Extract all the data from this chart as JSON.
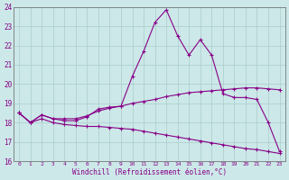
{
  "xlabel": "Windchill (Refroidissement éolien,°C)",
  "xlim": [
    -0.5,
    23.5
  ],
  "ylim": [
    16,
    24
  ],
  "yticks": [
    16,
    17,
    18,
    19,
    20,
    21,
    22,
    23,
    24
  ],
  "xticks": [
    0,
    1,
    2,
    3,
    4,
    5,
    6,
    7,
    8,
    9,
    10,
    11,
    12,
    13,
    14,
    15,
    16,
    17,
    18,
    19,
    20,
    21,
    22,
    23
  ],
  "bg_color": "#cce8e8",
  "grid_color": "#aacccc",
  "line_color": "#880088",
  "line1_x": [
    0,
    1,
    2,
    3,
    4,
    5,
    6,
    7,
    8,
    9,
    10,
    11,
    12,
    13,
    14,
    15,
    16,
    17,
    18,
    19,
    20,
    21,
    22,
    23
  ],
  "line1_y": [
    18.5,
    18.0,
    18.4,
    18.2,
    18.1,
    18.1,
    18.3,
    18.7,
    18.8,
    18.85,
    20.4,
    21.7,
    23.2,
    23.85,
    22.5,
    21.5,
    22.3,
    21.5,
    19.5,
    19.3,
    19.3,
    19.2,
    18.0,
    16.5
  ],
  "line2_x": [
    0,
    1,
    2,
    3,
    4,
    5,
    6,
    7,
    8,
    9,
    10,
    11,
    12,
    13,
    14,
    15,
    16,
    17,
    18,
    19,
    20,
    21,
    22,
    23
  ],
  "line2_y": [
    18.5,
    18.0,
    18.4,
    18.2,
    18.2,
    18.2,
    18.35,
    18.6,
    18.75,
    18.85,
    19.0,
    19.1,
    19.2,
    19.35,
    19.45,
    19.55,
    19.6,
    19.65,
    19.7,
    19.75,
    19.8,
    19.8,
    19.75,
    19.7
  ],
  "line3_x": [
    0,
    1,
    2,
    3,
    4,
    5,
    6,
    7,
    8,
    9,
    10,
    11,
    12,
    13,
    14,
    15,
    16,
    17,
    18,
    19,
    20,
    21,
    22,
    23
  ],
  "line3_y": [
    18.5,
    18.0,
    18.2,
    18.0,
    17.9,
    17.85,
    17.8,
    17.8,
    17.75,
    17.7,
    17.65,
    17.55,
    17.45,
    17.35,
    17.25,
    17.15,
    17.05,
    16.95,
    16.85,
    16.75,
    16.65,
    16.6,
    16.5,
    16.4
  ]
}
